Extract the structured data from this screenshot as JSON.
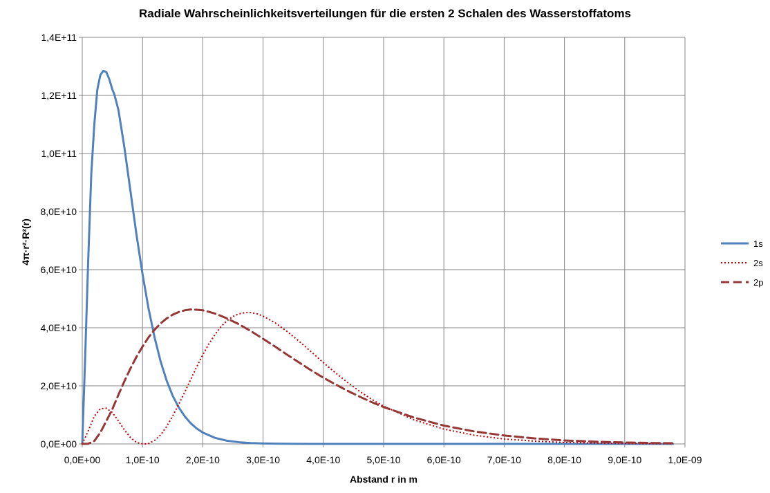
{
  "chart_data": {
    "type": "line",
    "title": "Radiale Wahrscheinlichkeitsverteilungen für die ersten 2 Schalen des Wasserstoffatoms",
    "xlabel": "Abstand r in m",
    "ylabel": "4π·r²·R²(r)",
    "xlim": [
      0,
      1e-09
    ],
    "ylim": [
      0,
      140000000000.0
    ],
    "x_ticks": [
      "0,0E+00",
      "1,0E-10",
      "2,0E-10",
      "3,0E-10",
      "4,0E-10",
      "5,0E-10",
      "6,0E-10",
      "7,0E-10",
      "8,0E-10",
      "9,0E-10",
      "1,0E-09"
    ],
    "y_ticks": [
      "0,0E+00",
      "2,0E+10",
      "4,0E+10",
      "6,0E+10",
      "8,0E+10",
      "1,0E+11",
      "1,2E+11",
      "1,4E+11"
    ],
    "grid": true,
    "legend_position": "right",
    "series": [
      {
        "name": "1s",
        "color": "#4f81bd",
        "style": "solid",
        "x": [
          0,
          5e-12,
          1e-11,
          1.5e-11,
          2e-11,
          2.5e-11,
          3e-11,
          3.5e-11,
          4e-11,
          4.5e-11,
          5e-11,
          5.3e-11,
          5.5e-11,
          6e-11,
          7e-11,
          8e-11,
          9e-11,
          1e-10,
          1.1e-10,
          1.2e-10,
          1.3e-10,
          1.4e-10,
          1.5e-10,
          1.6e-10,
          1.7e-10,
          1.8e-10,
          1.9e-10,
          2e-10,
          2.2e-10,
          2.4e-10,
          2.6e-10,
          2.8e-10,
          3e-10,
          3.2e-10,
          3.5e-10,
          3.8e-10,
          4e-10,
          4.5e-10,
          5e-10,
          6e-10,
          7e-10,
          8e-10,
          9e-10,
          9.8e-10
        ],
        "y": [
          0,
          31000000000.0,
          64000000000.0,
          93000000000.0,
          110000000000.0,
          122000000000.0,
          127000000000.0,
          128500000000.0,
          128000000000.0,
          125500000000.0,
          122000000000.0,
          120500000000.0,
          119000000000.0,
          115000000000.0,
          102000000000.0,
          87000000000.0,
          72000000000.0,
          58500000000.0,
          46600000000.0,
          36700000000.0,
          28400000000.0,
          21800000000.0,
          16600000000.0,
          12600000000.0,
          9500000000.0,
          7100000000.0,
          5300000000.0,
          3900000000.0,
          2100000000.0,
          1100000000.0,
          580000000.0,
          300000000.0,
          150000000.0,
          77000000.0,
          27000000.0,
          9300000.0,
          4500000.0,
          750000.0,
          120000.0,
          3000.0,
          0,
          0,
          0,
          0
        ]
      },
      {
        "name": "2s",
        "color": "#c00000",
        "style": "dotted",
        "x": [
          0,
          1e-11,
          2e-11,
          3e-11,
          4e-11,
          5e-11,
          6e-11,
          7e-11,
          8e-11,
          9e-11,
          1e-10,
          1.06e-10,
          1.1e-10,
          1.2e-10,
          1.3e-10,
          1.4e-10,
          1.5e-10,
          1.6e-10,
          1.7e-10,
          1.8e-10,
          1.9e-10,
          2e-10,
          2.1e-10,
          2.2e-10,
          2.3e-10,
          2.4e-10,
          2.5e-10,
          2.6e-10,
          2.7e-10,
          2.8e-10,
          2.9e-10,
          3e-10,
          3.2e-10,
          3.4e-10,
          3.6e-10,
          3.8e-10,
          4e-10,
          4.2e-10,
          4.4e-10,
          4.6e-10,
          4.8e-10,
          5e-10,
          5.5e-10,
          6e-10,
          6.5e-10,
          7e-10,
          7.5e-10,
          8e-10,
          8.5e-10,
          9e-10,
          9.5e-10,
          9.8e-10
        ],
        "y": [
          0,
          4500000000.0,
          9500000000.0,
          12100000000.0,
          12300000000.0,
          10800000000.0,
          7900000000.0,
          4800000000.0,
          2200000000.0,
          500000000.0,
          24000000.0,
          0,
          120000000.0,
          1200000000.0,
          3100000000.0,
          6000000000.0,
          9600000000.0,
          13600000000.0,
          17800000000.0,
          22200000000.0,
          26600000000.0,
          30700000000.0,
          34400000000.0,
          37600000000.0,
          40300000000.0,
          42400000000.0,
          43900000000.0,
          44800000000.0,
          45200000000.0,
          45200000000.0,
          44800000000.0,
          44000000000.0,
          41700000000.0,
          38700000000.0,
          35300000000.0,
          31700000000.0,
          28000000000.0,
          24500000000.0,
          21200000000.0,
          18100000000.0,
          15400000000.0,
          13000000000.0,
          8300000000.0,
          5100000000.0,
          3000000000.0,
          1700000000.0,
          950000000.0,
          510000000.0,
          270000000.0,
          140000000.0,
          70000000.0,
          40000000.0
        ]
      },
      {
        "name": "2p",
        "color": "#953735",
        "style": "dashed",
        "x": [
          0,
          1e-11,
          2e-11,
          3e-11,
          4e-11,
          5e-11,
          6e-11,
          7e-11,
          8e-11,
          9e-11,
          1e-10,
          1.1e-10,
          1.2e-10,
          1.3e-10,
          1.4e-10,
          1.5e-10,
          1.6e-10,
          1.7e-10,
          1.8e-10,
          1.9e-10,
          2e-10,
          2.1e-10,
          2.2e-10,
          2.3e-10,
          2.4e-10,
          2.5e-10,
          2.6e-10,
          2.8e-10,
          3e-10,
          3.2e-10,
          3.4e-10,
          3.6e-10,
          3.8e-10,
          4e-10,
          4.2e-10,
          4.4e-10,
          4.6e-10,
          4.8e-10,
          5e-10,
          5.5e-10,
          6e-10,
          6.5e-10,
          7e-10,
          7.5e-10,
          8e-10,
          8.5e-10,
          9e-10,
          9.5e-10,
          9.8e-10
        ],
        "y": [
          0,
          70000000.0,
          1000000000.0,
          3900000000.0,
          7900000000.0,
          12000000000.0,
          16900000000.0,
          21600000000.0,
          26000000000.0,
          30000000000.0,
          33500000000.0,
          36700000000.0,
          39300000000.0,
          41500000000.0,
          43200000000.0,
          44500000000.0,
          45400000000.0,
          46000000000.0,
          46300000000.0,
          46200000000.0,
          46000000000.0,
          45500000000.0,
          44900000000.0,
          44100000000.0,
          43200000000.0,
          42200000000.0,
          41200000000.0,
          38800000000.0,
          36200000000.0,
          33500000000.0,
          30700000000.0,
          28000000000.0,
          25300000000.0,
          22800000000.0,
          20500000000.0,
          18300000000.0,
          16300000000.0,
          14400000000.0,
          12700000000.0,
          9100000000.0,
          6300000000.0,
          4300000000.0,
          2900000000.0,
          1900000000.0,
          1200000000.0,
          780000000.0,
          500000000.0,
          310000000.0,
          240000000.0
        ]
      }
    ]
  }
}
